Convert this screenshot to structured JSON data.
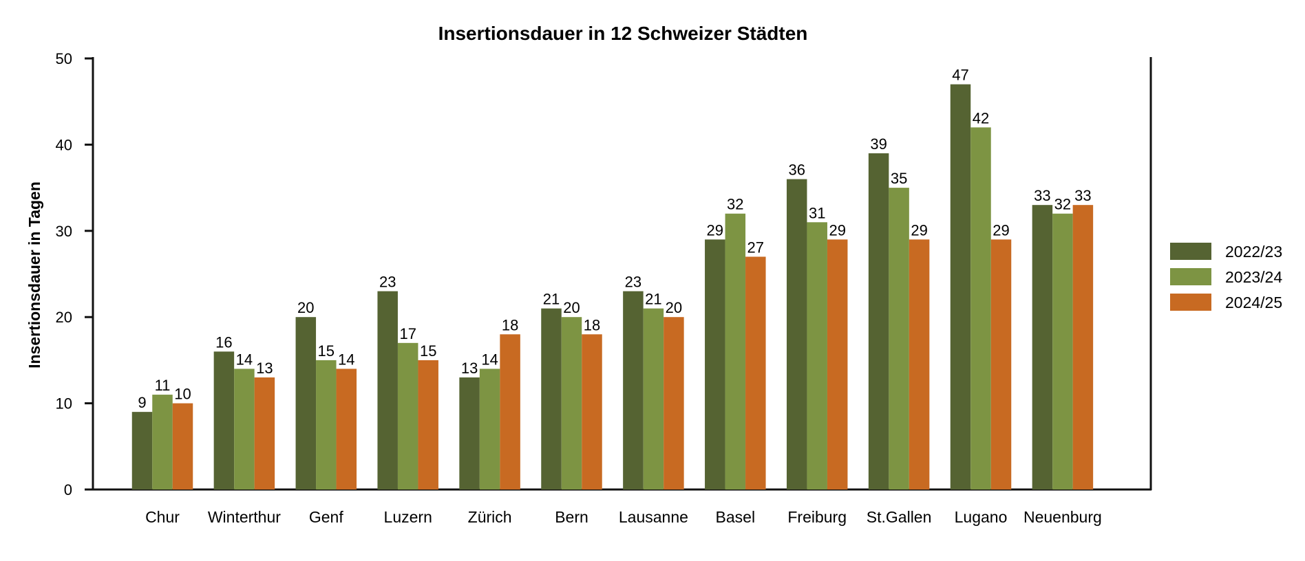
{
  "chart_data": {
    "type": "bar",
    "title": "Insertionsdauer in 12 Schweizer Städten",
    "xlabel": "",
    "ylabel": "Insertionsdauer in Tagen",
    "ylim": [
      0,
      50
    ],
    "yticks": [
      "0",
      "10",
      "20",
      "30",
      "40",
      "50"
    ],
    "grid": false,
    "legend_position": "right",
    "categories": [
      "Chur",
      "Winterthur",
      "Genf",
      "Luzern",
      "Zürich",
      "Bern",
      "Lausanne",
      "Basel",
      "Freiburg",
      "St.Gallen",
      "Lugano",
      "Neuenburg"
    ],
    "series": [
      {
        "name": "2022/23",
        "color": "#556332",
        "values": [
          9,
          16,
          20,
          23,
          13,
          21,
          23,
          29,
          36,
          39,
          47,
          33
        ]
      },
      {
        "name": "2023/24",
        "color": "#7d9443",
        "values": [
          11,
          14,
          15,
          17,
          14,
          20,
          21,
          32,
          31,
          35,
          42,
          32
        ]
      },
      {
        "name": "2024/25",
        "color": "#c86a22",
        "values": [
          10,
          13,
          14,
          15,
          18,
          18,
          20,
          27,
          29,
          29,
          29,
          33
        ]
      }
    ]
  }
}
